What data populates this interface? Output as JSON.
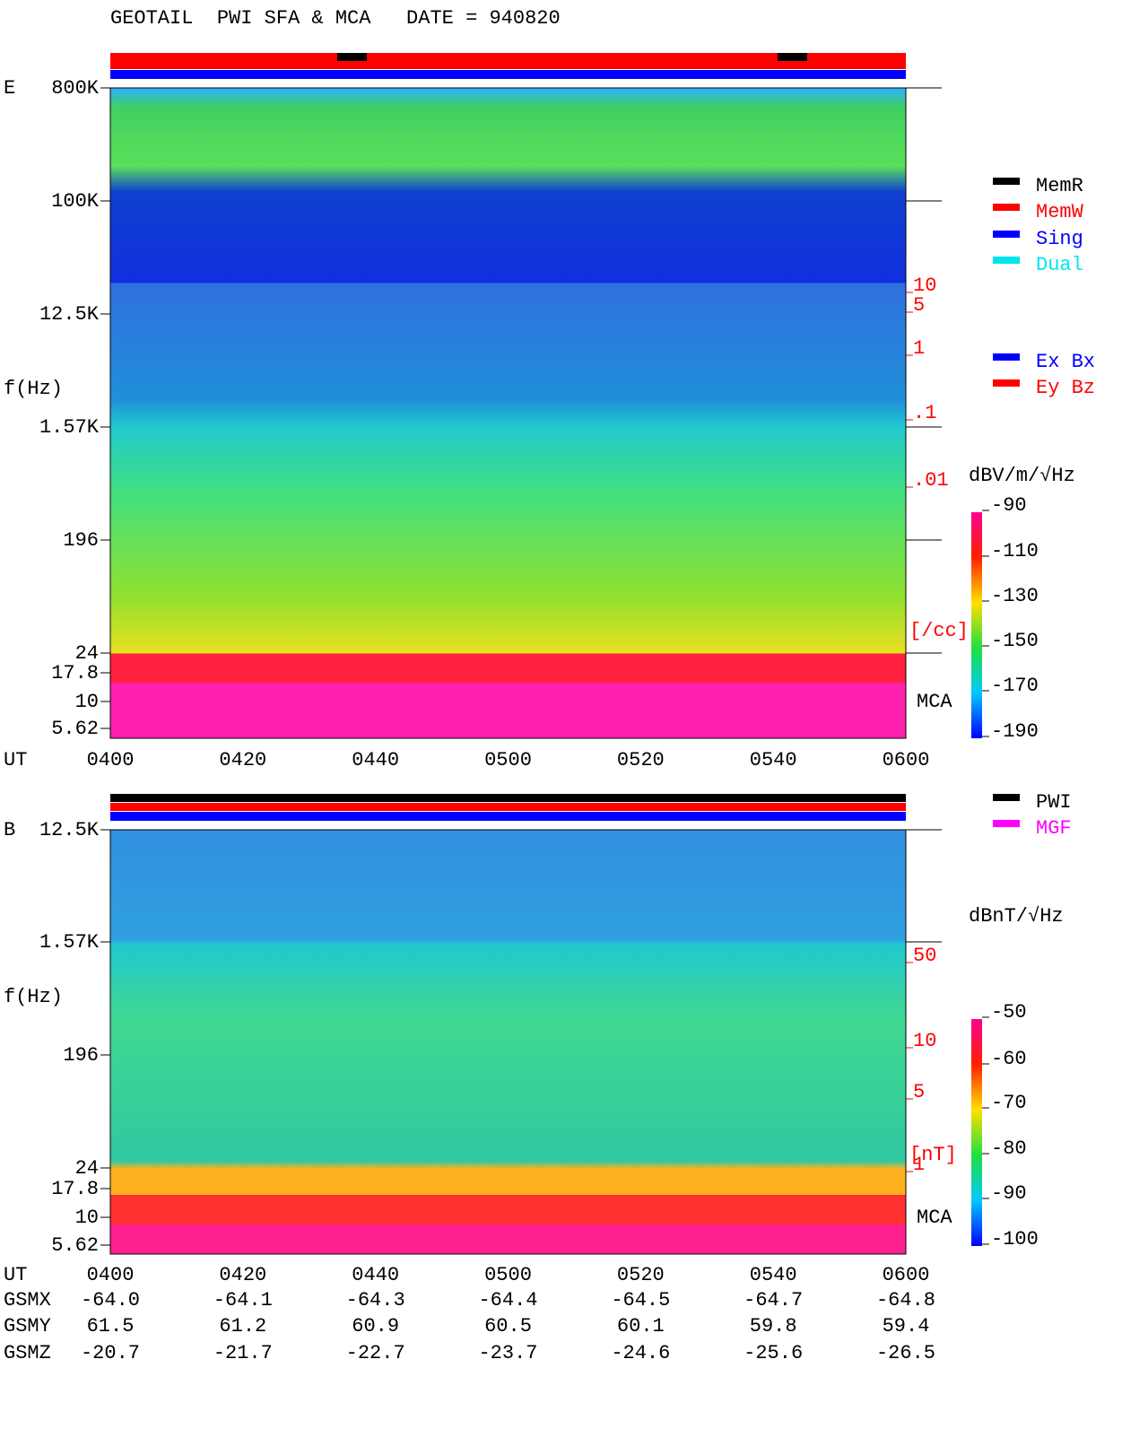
{
  "header": {
    "title": "GEOTAIL  PWI SFA & MCA   DATE = 940820"
  },
  "panels": [
    {
      "label": "E",
      "y_label": "f(Hz)",
      "x_label": "UT",
      "freq_ticks": [
        "800K",
        "100K",
        "12.5K",
        "1.57K",
        "196",
        "24",
        "17.8",
        "10",
        "5.62"
      ],
      "time_ticks": [
        "0400",
        "0420",
        "0440",
        "0500",
        "0520",
        "0540",
        "0600"
      ],
      "right_ticks": [
        "10",
        "5",
        "1",
        ".1",
        ".01"
      ],
      "right_unit": "[/cc]",
      "mca_label": "MCA",
      "colorbar_unit": "dBV/m/√Hz",
      "colorbar_ticks": [
        "-90",
        "-110",
        "-130",
        "-150",
        "-170",
        "-190"
      ],
      "legend": [
        {
          "label": "MemR",
          "color": "#000000"
        },
        {
          "label": "MemW",
          "color": "#ff0000"
        },
        {
          "label": "Sing",
          "color": "#0000ff"
        },
        {
          "label": "Dual",
          "color": "#00e5ee"
        }
      ],
      "legend2": [
        {
          "label": "Ex Bx",
          "color": "#0000ff"
        },
        {
          "label": "Ey Bz",
          "color": "#ff0000"
        }
      ]
    },
    {
      "label": "B",
      "y_label": "f(Hz)",
      "x_label": "UT",
      "freq_ticks": [
        "12.5K",
        "1.57K",
        "196",
        "24",
        "17.8",
        "10",
        "5.62"
      ],
      "time_ticks": [
        "0400",
        "0420",
        "0440",
        "0500",
        "0520",
        "0540",
        "0600"
      ],
      "right_ticks": [
        "50",
        "10",
        "5",
        "1"
      ],
      "right_unit": "[nT]",
      "mca_label": "MCA",
      "colorbar_unit": "dBnT/√Hz",
      "colorbar_ticks": [
        "-50",
        "-60",
        "-70",
        "-80",
        "-90",
        "-100"
      ],
      "legend": [
        {
          "label": "PWI",
          "color": "#000000"
        },
        {
          "label": "MGF",
          "color": "#ff00ff"
        }
      ]
    }
  ],
  "orbit": {
    "rows": [
      {
        "name": "GSMX",
        "values": [
          "-64.0",
          "-64.1",
          "-64.3",
          "-64.4",
          "-64.5",
          "-64.7",
          "-64.8"
        ]
      },
      {
        "name": "GSMY",
        "values": [
          "61.5",
          "61.2",
          "60.9",
          "60.5",
          "60.1",
          "59.8",
          "59.4"
        ]
      },
      {
        "name": "GSMZ",
        "values": [
          "-20.7",
          "-21.7",
          "-22.7",
          "-23.7",
          "-24.6",
          "-25.6",
          "-26.5"
        ]
      }
    ]
  }
}
